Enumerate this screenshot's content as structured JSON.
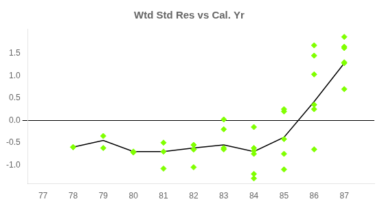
{
  "chart_data": {
    "type": "scatter",
    "title": "Wtd Std Res vs Cal. Yr",
    "xlim": [
      76.5,
      88.0
    ],
    "ylim": [
      -1.42,
      2.05
    ],
    "xticks": [
      77,
      78,
      79,
      80,
      81,
      82,
      83,
      84,
      85,
      86,
      87
    ],
    "yticks": [
      {
        "value": -1.0,
        "label": "-1.0"
      },
      -0.5,
      {
        "value": 0.0,
        "label": "0.0"
      },
      0.5,
      {
        "value": 1.0,
        "label": "1.0"
      },
      1.5
    ],
    "grid": false,
    "series": [
      {
        "type": "scatter",
        "color": "#80ff00",
        "marker": "diamond",
        "x": [
          78,
          78,
          79,
          79,
          80,
          80,
          81,
          81,
          81,
          82,
          82,
          82,
          82,
          82,
          83,
          83,
          83,
          83,
          84,
          84,
          84,
          84,
          84,
          84,
          85,
          85,
          85,
          85,
          85,
          86,
          86,
          86,
          86,
          86,
          86,
          87,
          87,
          87,
          87,
          87,
          87
        ],
        "values": [
          -0.6,
          -0.6,
          -0.35,
          -0.62,
          -0.7,
          -0.72,
          -0.5,
          -0.7,
          -1.08,
          -0.55,
          -0.55,
          -0.65,
          -0.65,
          -1.05,
          0.02,
          -0.2,
          -0.62,
          -0.65,
          -0.15,
          -0.62,
          -0.68,
          -0.75,
          -1.2,
          -1.3,
          0.2,
          0.25,
          -0.42,
          -0.75,
          -1.1,
          0.35,
          0.25,
          1.03,
          1.45,
          1.68,
          -0.65,
          0.7,
          1.28,
          1.3,
          1.62,
          1.65,
          1.87
        ]
      },
      {
        "type": "line",
        "color": "#000000",
        "line_style": "solid",
        "x": [
          78,
          79,
          80,
          81,
          82,
          83,
          84,
          85,
          86,
          87
        ],
        "values": [
          -0.6,
          -0.45,
          -0.7,
          -0.7,
          -0.62,
          -0.55,
          -0.7,
          -0.38,
          0.42,
          1.28
        ]
      }
    ]
  }
}
